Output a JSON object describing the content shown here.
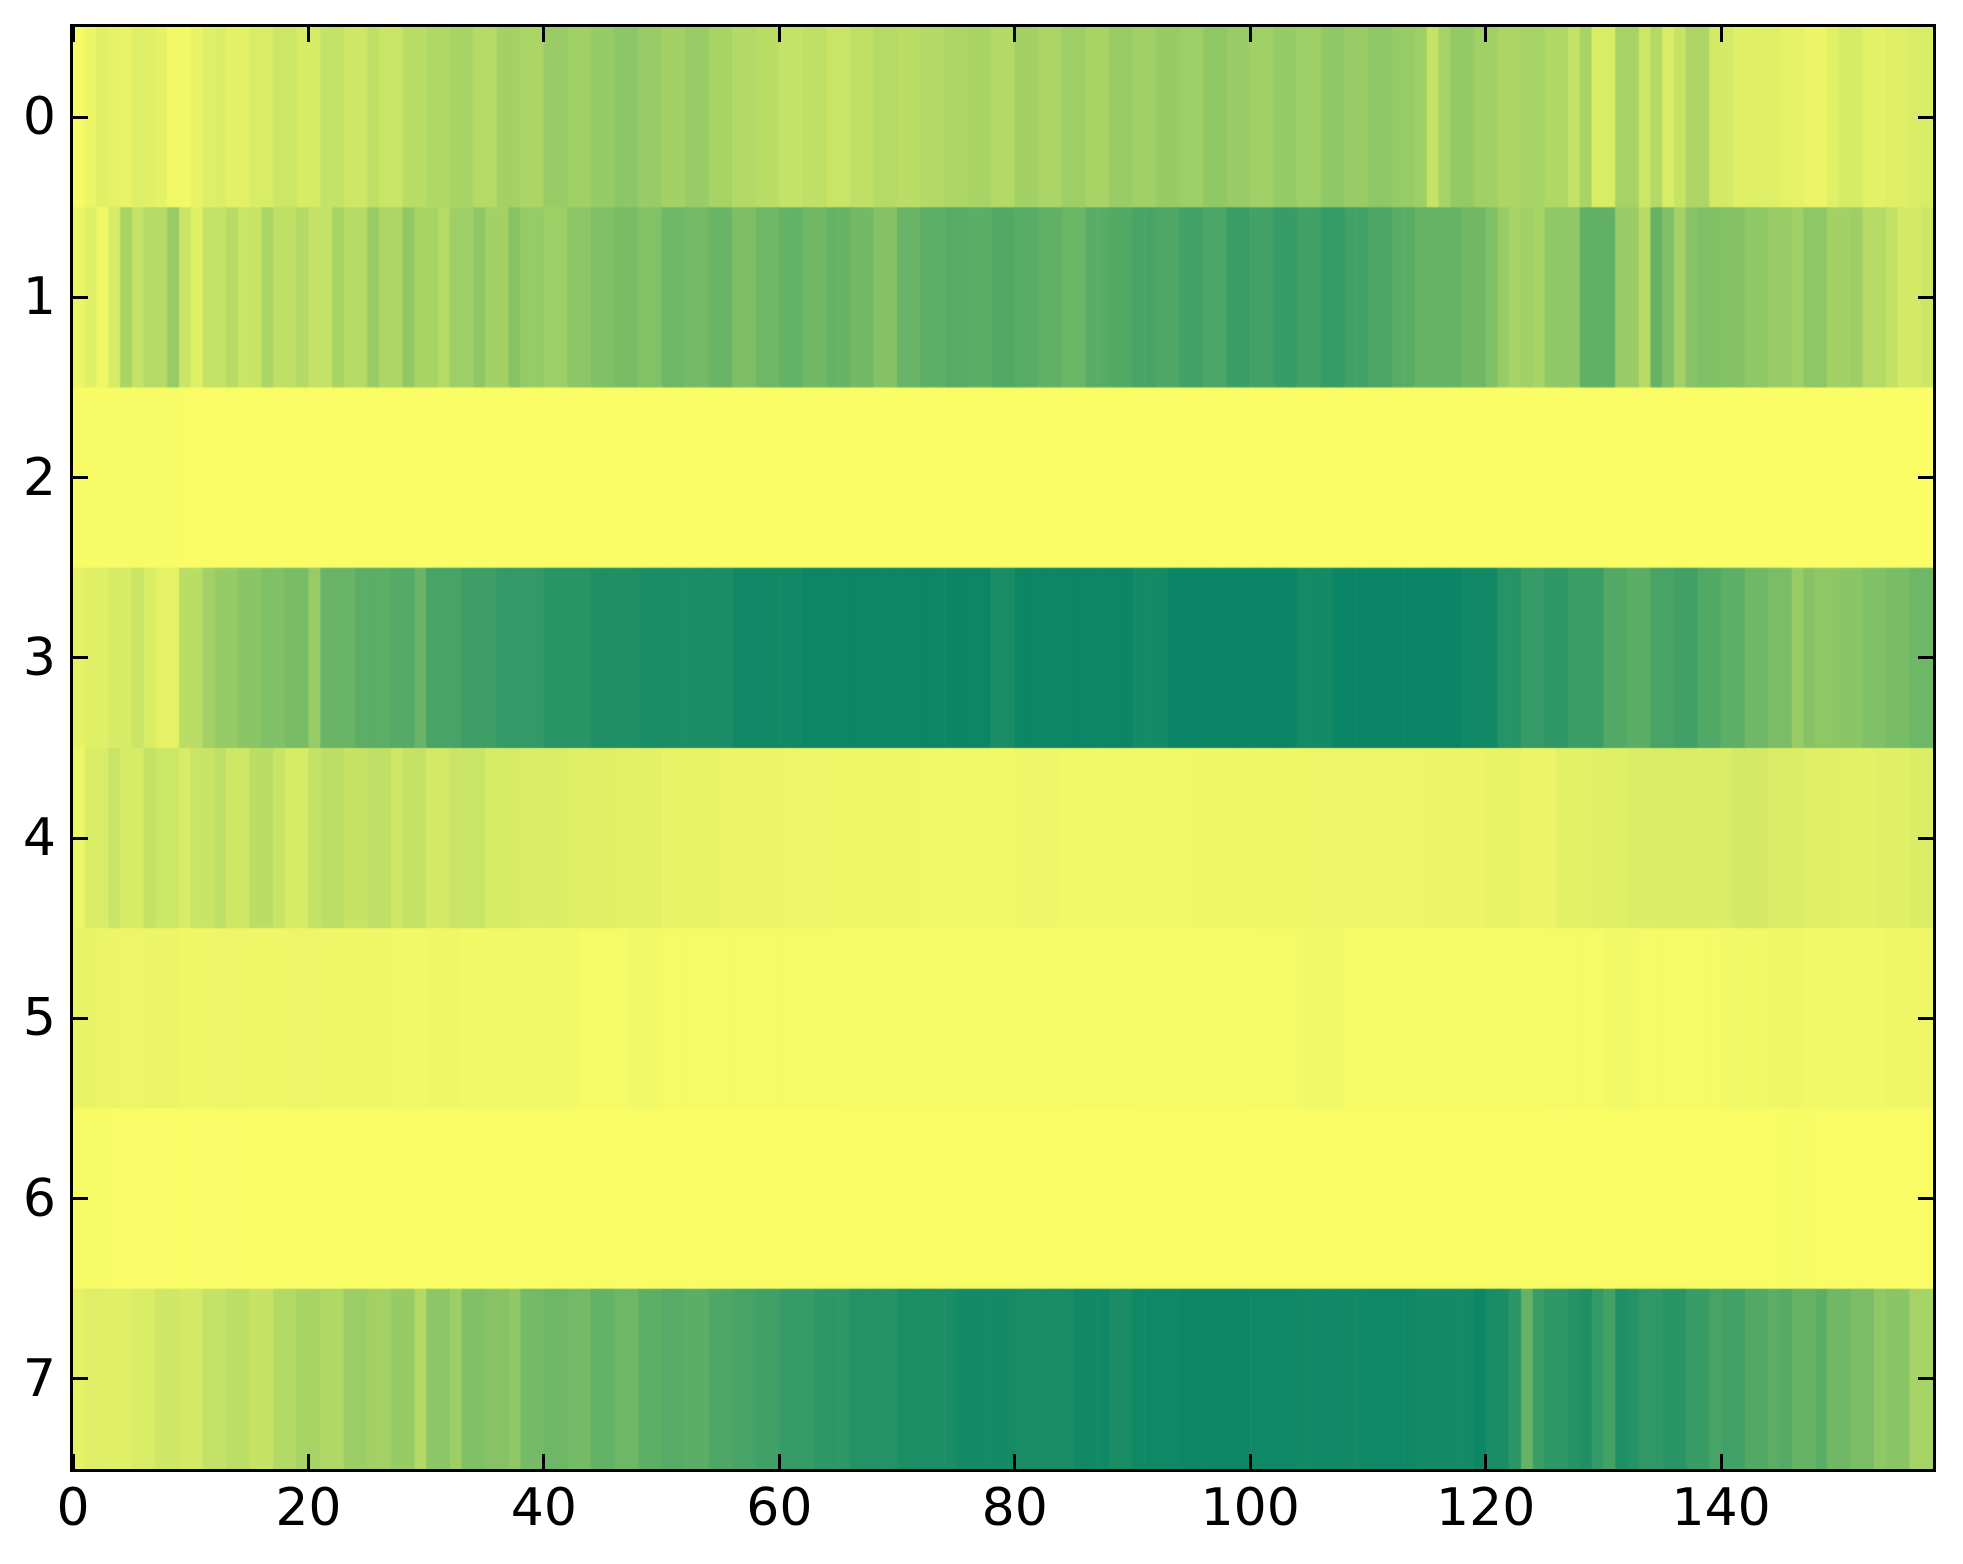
{
  "figure": {
    "background_color": "#ffffff",
    "spine_color": "#000000",
    "tick_color": "#000000",
    "label_color": "#000000"
  },
  "chart_data": {
    "type": "heatmap",
    "title": "",
    "xlabel": "",
    "ylabel": "",
    "n_rows": 8,
    "n_cols": 158,
    "x_range": [
      0,
      158
    ],
    "y_tick_labels": [
      "0",
      "1",
      "2",
      "3",
      "4",
      "5",
      "6",
      "7"
    ],
    "x_tick_labels": [
      "0",
      "20",
      "40",
      "60",
      "80",
      "100",
      "120",
      "140"
    ],
    "x_tick_values": [
      0,
      20,
      40,
      60,
      80,
      100,
      120,
      140
    ],
    "y_tick_values": [
      0,
      1,
      2,
      3,
      4,
      5,
      6,
      7
    ],
    "grid": false,
    "legend": "none",
    "colormap": {
      "name": "summer_r",
      "min_color": "#ffff66",
      "max_color": "#008066",
      "value_meaning": "normalized intensity, 0 = bright yellow (min), 1 = dark teal green (max)"
    },
    "matrix": [
      [
        0.04,
        0.08,
        0.12,
        0.1,
        0.09,
        0.13,
        0.12,
        0.1,
        0.05,
        0.05,
        0.09,
        0.12,
        0.14,
        0.11,
        0.11,
        0.15,
        0.15,
        0.2,
        0.2,
        0.16,
        0.16,
        0.23,
        0.23,
        0.19,
        0.19,
        0.25,
        0.21,
        0.21,
        0.27,
        0.27,
        0.31,
        0.31,
        0.34,
        0.34,
        0.29,
        0.29,
        0.36,
        0.36,
        0.33,
        0.33,
        0.4,
        0.4,
        0.37,
        0.37,
        0.41,
        0.41,
        0.45,
        0.45,
        0.4,
        0.4,
        0.36,
        0.36,
        0.4,
        0.4,
        0.34,
        0.34,
        0.3,
        0.3,
        0.27,
        0.27,
        0.23,
        0.23,
        0.25,
        0.25,
        0.21,
        0.21,
        0.25,
        0.25,
        0.29,
        0.29,
        0.27,
        0.27,
        0.3,
        0.3,
        0.32,
        0.32,
        0.34,
        0.34,
        0.3,
        0.3,
        0.36,
        0.36,
        0.33,
        0.33,
        0.38,
        0.38,
        0.34,
        0.34,
        0.4,
        0.4,
        0.37,
        0.37,
        0.41,
        0.41,
        0.38,
        0.38,
        0.43,
        0.43,
        0.4,
        0.4,
        0.37,
        0.37,
        0.41,
        0.41,
        0.38,
        0.38,
        0.43,
        0.43,
        0.4,
        0.4,
        0.44,
        0.44,
        0.41,
        0.41,
        0.38,
        0.22,
        0.35,
        0.42,
        0.42,
        0.37,
        0.37,
        0.33,
        0.33,
        0.35,
        0.35,
        0.31,
        0.31,
        0.23,
        0.34,
        0.15,
        0.15,
        0.35,
        0.35,
        0.2,
        0.3,
        0.15,
        0.22,
        0.32,
        0.32,
        0.17,
        0.17,
        0.12,
        0.12,
        0.13,
        0.13,
        0.1,
        0.1,
        0.08,
        0.08,
        0.12,
        0.16,
        0.16,
        0.11,
        0.11,
        0.13,
        0.13,
        0.15,
        0.15
      ],
      [
        0.08,
        0.12,
        0.06,
        0.16,
        0.34,
        0.23,
        0.29,
        0.29,
        0.41,
        0.21,
        0.12,
        0.23,
        0.23,
        0.28,
        0.21,
        0.21,
        0.33,
        0.25,
        0.25,
        0.3,
        0.23,
        0.23,
        0.34,
        0.29,
        0.29,
        0.4,
        0.32,
        0.32,
        0.43,
        0.34,
        0.34,
        0.29,
        0.38,
        0.38,
        0.44,
        0.36,
        0.36,
        0.47,
        0.41,
        0.41,
        0.38,
        0.38,
        0.45,
        0.45,
        0.5,
        0.5,
        0.53,
        0.53,
        0.49,
        0.49,
        0.57,
        0.57,
        0.54,
        0.54,
        0.59,
        0.59,
        0.51,
        0.51,
        0.57,
        0.57,
        0.61,
        0.61,
        0.56,
        0.56,
        0.6,
        0.6,
        0.55,
        0.55,
        0.48,
        0.48,
        0.59,
        0.59,
        0.63,
        0.63,
        0.66,
        0.66,
        0.64,
        0.64,
        0.68,
        0.68,
        0.65,
        0.65,
        0.62,
        0.62,
        0.58,
        0.58,
        0.65,
        0.65,
        0.68,
        0.68,
        0.72,
        0.72,
        0.69,
        0.69,
        0.74,
        0.74,
        0.71,
        0.71,
        0.77,
        0.77,
        0.74,
        0.74,
        0.78,
        0.78,
        0.75,
        0.75,
        0.79,
        0.79,
        0.74,
        0.74,
        0.71,
        0.71,
        0.65,
        0.65,
        0.6,
        0.6,
        0.6,
        0.6,
        0.56,
        0.56,
        0.5,
        0.4,
        0.35,
        0.37,
        0.34,
        0.43,
        0.43,
        0.43,
        0.62,
        0.62,
        0.62,
        0.4,
        0.4,
        0.28,
        0.6,
        0.5,
        0.36,
        0.47,
        0.5,
        0.5,
        0.48,
        0.48,
        0.43,
        0.43,
        0.4,
        0.4,
        0.37,
        0.44,
        0.44,
        0.36,
        0.36,
        0.38,
        0.29,
        0.29,
        0.24,
        0.17,
        0.17,
        0.2
      ],
      [
        0.03,
        0.03,
        0.03,
        0.03,
        0.03,
        0.03,
        0.03,
        0.03,
        0.03,
        0.02,
        0.02,
        0.02,
        0.02,
        0.02,
        0.02,
        0.02,
        0.02,
        0.02,
        0.02,
        0.02,
        0.02,
        0.02,
        0.02,
        0.02,
        0.02,
        0.02,
        0.02,
        0.02,
        0.02,
        0.02,
        0.015,
        0.015,
        0.015,
        0.015,
        0.015,
        0.015,
        0.015,
        0.015,
        0.015,
        0.015,
        0.015,
        0.015,
        0.015,
        0.015,
        0.015,
        0.015,
        0.015,
        0.015,
        0.015,
        0.015,
        0.015,
        0.015,
        0.015,
        0.015,
        0.015,
        0.015,
        0.015,
        0.015,
        0.015,
        0.015,
        0.015,
        0.015,
        0.015,
        0.015,
        0.015,
        0.015,
        0.015,
        0.015,
        0.015,
        0.015,
        0.015,
        0.015,
        0.015,
        0.015,
        0.015,
        0.015,
        0.015,
        0.015,
        0.015,
        0.015,
        0.015,
        0.015,
        0.015,
        0.015,
        0.015,
        0.015,
        0.015,
        0.015,
        0.015,
        0.015,
        0.015,
        0.015,
        0.015,
        0.015,
        0.015,
        0.015,
        0.015,
        0.015,
        0.015,
        0.015,
        0.015,
        0.015,
        0.015,
        0.015,
        0.015,
        0.015,
        0.015,
        0.015,
        0.015,
        0.015,
        0.015,
        0.015,
        0.015,
        0.015,
        0.015,
        0.015,
        0.015,
        0.015,
        0.015,
        0.015,
        0.015,
        0.015,
        0.015,
        0.015,
        0.015,
        0.015,
        0.015,
        0.015,
        0.015,
        0.015,
        0.015,
        0.015,
        0.015,
        0.015,
        0.015,
        0.015,
        0.015,
        0.015,
        0.015,
        0.015,
        0.015,
        0.015,
        0.015,
        0.015,
        0.015,
        0.015,
        0.015,
        0.015,
        0.015,
        0.015,
        0.015,
        0.015,
        0.015,
        0.015,
        0.015,
        0.015,
        0.015,
        0.015
      ],
      [
        0.1,
        0.12,
        0.12,
        0.16,
        0.16,
        0.21,
        0.15,
        0.1,
        0.1,
        0.27,
        0.27,
        0.36,
        0.41,
        0.41,
        0.46,
        0.46,
        0.5,
        0.5,
        0.53,
        0.53,
        0.4,
        0.59,
        0.59,
        0.59,
        0.64,
        0.64,
        0.64,
        0.67,
        0.67,
        0.59,
        0.72,
        0.72,
        0.72,
        0.76,
        0.76,
        0.76,
        0.8,
        0.8,
        0.8,
        0.8,
        0.84,
        0.84,
        0.84,
        0.84,
        0.88,
        0.88,
        0.88,
        0.88,
        0.9,
        0.9,
        0.9,
        0.9,
        0.9,
        0.9,
        0.9,
        0.9,
        0.93,
        0.93,
        0.93,
        0.93,
        0.93,
        0.93,
        0.95,
        0.95,
        0.95,
        0.95,
        0.95,
        0.95,
        0.95,
        0.95,
        0.95,
        0.95,
        0.95,
        0.95,
        0.95,
        0.95,
        0.95,
        0.95,
        0.9,
        0.9,
        0.95,
        0.95,
        0.95,
        0.95,
        0.95,
        0.95,
        0.95,
        0.95,
        0.95,
        0.95,
        0.92,
        0.92,
        0.92,
        0.96,
        0.96,
        0.96,
        0.96,
        0.96,
        0.96,
        0.96,
        0.96,
        0.96,
        0.96,
        0.96,
        0.92,
        0.92,
        0.92,
        0.96,
        0.96,
        0.96,
        0.96,
        0.96,
        0.96,
        0.96,
        0.96,
        0.96,
        0.96,
        0.96,
        0.93,
        0.93,
        0.93,
        0.85,
        0.85,
        0.79,
        0.79,
        0.82,
        0.82,
        0.77,
        0.77,
        0.77,
        0.68,
        0.68,
        0.64,
        0.64,
        0.72,
        0.72,
        0.75,
        0.75,
        0.68,
        0.68,
        0.63,
        0.63,
        0.56,
        0.56,
        0.52,
        0.52,
        0.4,
        0.47,
        0.44,
        0.44,
        0.46,
        0.46,
        0.5,
        0.5,
        0.53,
        0.53,
        0.57,
        0.57
      ],
      [
        0.07,
        0.15,
        0.15,
        0.21,
        0.16,
        0.16,
        0.23,
        0.2,
        0.2,
        0.15,
        0.21,
        0.21,
        0.25,
        0.19,
        0.19,
        0.27,
        0.27,
        0.21,
        0.16,
        0.16,
        0.23,
        0.26,
        0.26,
        0.22,
        0.22,
        0.25,
        0.25,
        0.19,
        0.23,
        0.23,
        0.17,
        0.17,
        0.21,
        0.21,
        0.21,
        0.16,
        0.16,
        0.16,
        0.14,
        0.14,
        0.14,
        0.14,
        0.12,
        0.12,
        0.12,
        0.12,
        0.11,
        0.11,
        0.11,
        0.11,
        0.09,
        0.09,
        0.09,
        0.09,
        0.09,
        0.08,
        0.08,
        0.08,
        0.08,
        0.08,
        0.07,
        0.07,
        0.07,
        0.07,
        0.07,
        0.06,
        0.06,
        0.06,
        0.06,
        0.06,
        0.06,
        0.06,
        0.05,
        0.05,
        0.05,
        0.05,
        0.05,
        0.05,
        0.05,
        0.05,
        0.06,
        0.07,
        0.07,
        0.06,
        0.05,
        0.05,
        0.05,
        0.05,
        0.05,
        0.05,
        0.05,
        0.05,
        0.05,
        0.05,
        0.05,
        0.06,
        0.06,
        0.06,
        0.06,
        0.06,
        0.06,
        0.06,
        0.06,
        0.06,
        0.06,
        0.07,
        0.07,
        0.07,
        0.07,
        0.07,
        0.07,
        0.07,
        0.07,
        0.07,
        0.07,
        0.08,
        0.08,
        0.08,
        0.08,
        0.08,
        0.09,
        0.09,
        0.09,
        0.08,
        0.08,
        0.08,
        0.11,
        0.11,
        0.11,
        0.12,
        0.12,
        0.12,
        0.14,
        0.14,
        0.14,
        0.15,
        0.15,
        0.15,
        0.14,
        0.14,
        0.14,
        0.17,
        0.17,
        0.17,
        0.14,
        0.14,
        0.14,
        0.12,
        0.12,
        0.12,
        0.11,
        0.11,
        0.11,
        0.12,
        0.12,
        0.12,
        0.14,
        0.14
      ],
      [
        0.09,
        0.09,
        0.08,
        0.08,
        0.07,
        0.07,
        0.08,
        0.08,
        0.08,
        0.06,
        0.06,
        0.06,
        0.07,
        0.07,
        0.07,
        0.06,
        0.06,
        0.06,
        0.07,
        0.07,
        0.07,
        0.06,
        0.06,
        0.06,
        0.06,
        0.06,
        0.06,
        0.05,
        0.05,
        0.05,
        0.06,
        0.06,
        0.06,
        0.05,
        0.05,
        0.05,
        0.05,
        0.05,
        0.05,
        0.05,
        0.05,
        0.05,
        0.05,
        0.04,
        0.04,
        0.04,
        0.04,
        0.05,
        0.05,
        0.05,
        0.04,
        0.04,
        0.04,
        0.04,
        0.04,
        0.04,
        0.04,
        0.04,
        0.04,
        0.04,
        0.04,
        0.04,
        0.04,
        0.04,
        0.04,
        0.03,
        0.03,
        0.03,
        0.03,
        0.03,
        0.03,
        0.03,
        0.03,
        0.03,
        0.03,
        0.03,
        0.03,
        0.03,
        0.03,
        0.03,
        0.03,
        0.03,
        0.03,
        0.03,
        0.03,
        0.04,
        0.04,
        0.04,
        0.04,
        0.04,
        0.03,
        0.03,
        0.03,
        0.03,
        0.03,
        0.03,
        0.03,
        0.03,
        0.03,
        0.03,
        0.04,
        0.04,
        0.04,
        0.04,
        0.05,
        0.05,
        0.05,
        0.05,
        0.03,
        0.03,
        0.03,
        0.03,
        0.03,
        0.03,
        0.03,
        0.03,
        0.03,
        0.03,
        0.03,
        0.03,
        0.03,
        0.03,
        0.03,
        0.03,
        0.03,
        0.04,
        0.04,
        0.04,
        0.04,
        0.04,
        0.05,
        0.05,
        0.05,
        0.04,
        0.04,
        0.04,
        0.04,
        0.04,
        0.04,
        0.04,
        0.05,
        0.05,
        0.05,
        0.05,
        0.06,
        0.06,
        0.06,
        0.05,
        0.05,
        0.05,
        0.05,
        0.05,
        0.05,
        0.05,
        0.06,
        0.06,
        0.06,
        0.06
      ],
      [
        0.03,
        0.03,
        0.03,
        0.025,
        0.025,
        0.025,
        0.025,
        0.025,
        0.025,
        0.025,
        0.025,
        0.025,
        0.025,
        0.025,
        0.025,
        0.02,
        0.02,
        0.02,
        0.02,
        0.02,
        0.02,
        0.02,
        0.02,
        0.02,
        0.02,
        0.02,
        0.02,
        0.02,
        0.02,
        0.02,
        0.02,
        0.02,
        0.02,
        0.02,
        0.02,
        0.02,
        0.02,
        0.02,
        0.02,
        0.02,
        0.02,
        0.02,
        0.02,
        0.02,
        0.02,
        0.02,
        0.02,
        0.02,
        0.02,
        0.02,
        0.02,
        0.02,
        0.02,
        0.02,
        0.02,
        0.02,
        0.02,
        0.02,
        0.02,
        0.02,
        0.02,
        0.02,
        0.02,
        0.02,
        0.02,
        0.02,
        0.02,
        0.02,
        0.02,
        0.02,
        0.02,
        0.02,
        0.02,
        0.02,
        0.02,
        0.02,
        0.02,
        0.02,
        0.02,
        0.02,
        0.02,
        0.02,
        0.02,
        0.02,
        0.02,
        0.02,
        0.02,
        0.02,
        0.02,
        0.02,
        0.02,
        0.02,
        0.02,
        0.02,
        0.02,
        0.02,
        0.02,
        0.02,
        0.02,
        0.02,
        0.02,
        0.02,
        0.02,
        0.02,
        0.02,
        0.02,
        0.02,
        0.02,
        0.02,
        0.02,
        0.02,
        0.02,
        0.02,
        0.02,
        0.02,
        0.02,
        0.02,
        0.02,
        0.02,
        0.02,
        0.02,
        0.02,
        0.02,
        0.02,
        0.02,
        0.02,
        0.02,
        0.02,
        0.02,
        0.02,
        0.02,
        0.02,
        0.02,
        0.02,
        0.02,
        0.02,
        0.02,
        0.02,
        0.02,
        0.02,
        0.02,
        0.02,
        0.02,
        0.02,
        0.02,
        0.03,
        0.03,
        0.03,
        0.02,
        0.02,
        0.02,
        0.02,
        0.02,
        0.02,
        0.02,
        0.02,
        0.02,
        0.02
      ],
      [
        0.1,
        0.13,
        0.13,
        0.12,
        0.12,
        0.15,
        0.15,
        0.19,
        0.19,
        0.17,
        0.17,
        0.23,
        0.23,
        0.26,
        0.26,
        0.22,
        0.22,
        0.3,
        0.3,
        0.34,
        0.34,
        0.31,
        0.31,
        0.39,
        0.39,
        0.36,
        0.36,
        0.41,
        0.41,
        0.3,
        0.45,
        0.45,
        0.38,
        0.5,
        0.5,
        0.47,
        0.47,
        0.43,
        0.54,
        0.54,
        0.57,
        0.57,
        0.54,
        0.54,
        0.61,
        0.61,
        0.57,
        0.57,
        0.63,
        0.63,
        0.66,
        0.66,
        0.64,
        0.64,
        0.69,
        0.69,
        0.72,
        0.72,
        0.75,
        0.75,
        0.79,
        0.79,
        0.79,
        0.82,
        0.82,
        0.82,
        0.86,
        0.86,
        0.86,
        0.86,
        0.89,
        0.89,
        0.89,
        0.89,
        0.89,
        0.92,
        0.92,
        0.92,
        0.92,
        0.92,
        0.9,
        0.9,
        0.9,
        0.9,
        0.9,
        0.93,
        0.93,
        0.93,
        0.9,
        0.9,
        0.94,
        0.94,
        0.94,
        0.94,
        0.95,
        0.95,
        0.95,
        0.95,
        0.95,
        0.95,
        0.94,
        0.94,
        0.94,
        0.94,
        0.93,
        0.93,
        0.93,
        0.93,
        0.93,
        0.93,
        0.94,
        0.94,
        0.94,
        0.94,
        0.92,
        0.92,
        0.92,
        0.92,
        0.92,
        0.95,
        0.9,
        0.9,
        0.83,
        0.6,
        0.77,
        0.82,
        0.82,
        0.85,
        0.88,
        0.8,
        0.73,
        0.88,
        0.85,
        0.81,
        0.81,
        0.84,
        0.84,
        0.78,
        0.78,
        0.72,
        0.74,
        0.74,
        0.68,
        0.68,
        0.64,
        0.67,
        0.6,
        0.6,
        0.64,
        0.56,
        0.56,
        0.52,
        0.52,
        0.43,
        0.46,
        0.46,
        0.35,
        0.35
      ]
    ]
  }
}
